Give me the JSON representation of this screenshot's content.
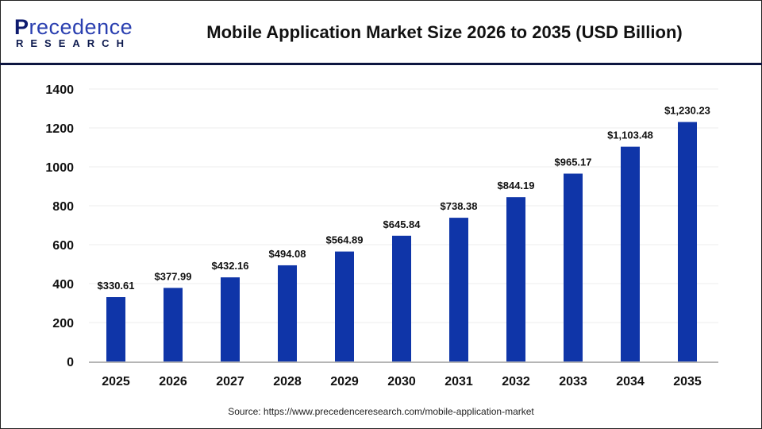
{
  "logo": {
    "line1_first": "P",
    "line1_rest": "recedence",
    "line2": "RESEARCH"
  },
  "chart_data": {
    "type": "bar",
    "title": "Mobile Application Market Size 2026 to 2035 (USD Billion)",
    "categories": [
      "2025",
      "2026",
      "2027",
      "2028",
      "2029",
      "2030",
      "2031",
      "2032",
      "2033",
      "2034",
      "2035"
    ],
    "values": [
      330.61,
      377.99,
      432.16,
      494.08,
      564.89,
      645.84,
      738.38,
      844.19,
      965.17,
      1103.48,
      1230.23
    ],
    "data_labels": [
      "$330.61",
      "$377.99",
      "$432.16",
      "$494.08",
      "$564.89",
      "$645.84",
      "$738.38",
      "$844.19",
      "$965.17",
      "$1,103.48",
      "$1,230.23"
    ],
    "yticks": [
      0,
      200,
      400,
      600,
      800,
      1000,
      1200,
      1400
    ],
    "ylim": [
      0,
      1400
    ],
    "xlabel": "",
    "ylabel": "",
    "grid": true,
    "bar_color": "#0f35a8"
  },
  "source": "Source: https://www.precedenceresearch.com/mobile-application-market"
}
